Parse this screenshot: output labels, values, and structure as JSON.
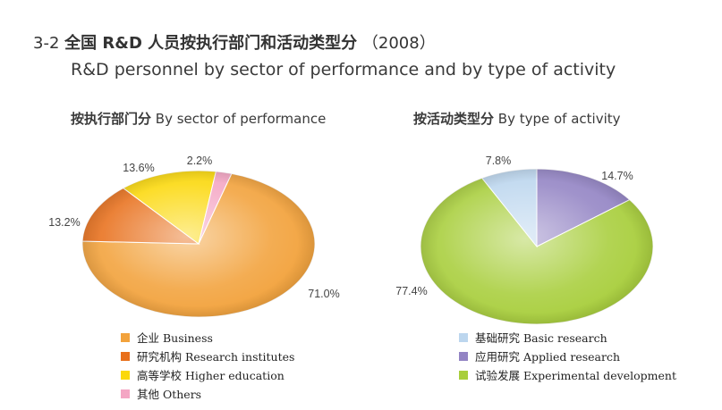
{
  "header": {
    "title_prefix": "3-2",
    "title_zh": "全国 R&D 人员按执行部门和活动类型分",
    "title_year": "（2008）",
    "title_en": "R&D personnel by sector of performance and by type of activity"
  },
  "chart_data": [
    {
      "type": "pie",
      "title_zh": "按执行部门分",
      "title_en": "By sector of performance",
      "legend_position": "bottom",
      "slices": [
        {
          "label_zh": "企业",
          "label_en": "Business",
          "value": 71.0,
          "display": "71.0%",
          "color": "#f2a23c"
        },
        {
          "label_zh": "研究机构",
          "label_en": "Research institutes",
          "value": 13.2,
          "display": "13.2%",
          "color": "#e8701c"
        },
        {
          "label_zh": "高等学校",
          "label_en": "Higher education",
          "value": 13.6,
          "display": "13.6%",
          "color": "#fbd80a"
        },
        {
          "label_zh": "其他",
          "label_en": "Others",
          "value": 2.2,
          "display": "2.2%",
          "color": "#f4a6c4"
        }
      ]
    },
    {
      "type": "pie",
      "title_zh": "按活动类型分",
      "title_en": "By type of activity",
      "legend_position": "bottom",
      "slices": [
        {
          "label_zh": "应用研究",
          "label_en": "Applied research",
          "value": 14.7,
          "display": "14.7%",
          "color": "#9384c4"
        },
        {
          "label_zh": "试验发展",
          "label_en": "Experimental development",
          "value": 77.4,
          "display": "77.4%",
          "color": "#a8ce3c"
        },
        {
          "label_zh": "基础研究",
          "label_en": "Basic research",
          "value": 7.8,
          "display": "7.8%",
          "color": "#bcd6ee"
        }
      ],
      "legend_order": [
        2,
        0,
        1
      ]
    }
  ]
}
